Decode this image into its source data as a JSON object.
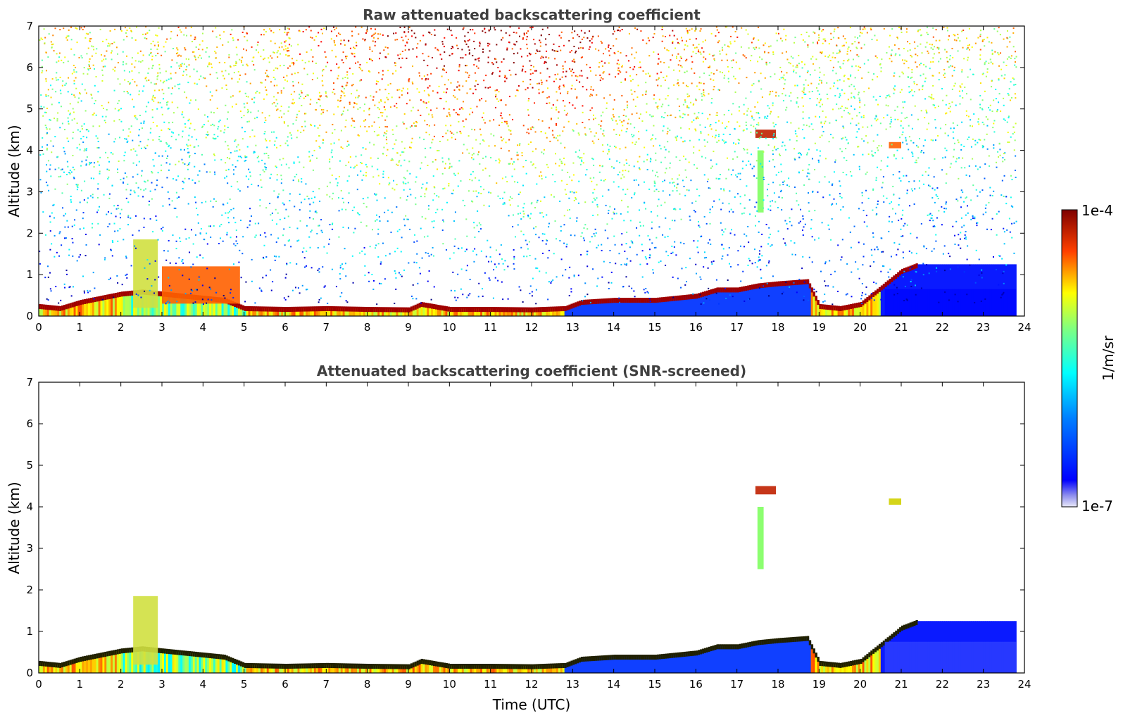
{
  "chart_data": [
    {
      "type": "heatmap",
      "title": "Raw attenuated backscattering coefficient",
      "xlabel": "",
      "ylabel": "Altitude (km)",
      "xlim": [
        0,
        24
      ],
      "ylim": [
        0,
        7
      ],
      "xticks": [
        "0",
        "1",
        "2",
        "3",
        "4",
        "5",
        "6",
        "7",
        "8",
        "9",
        "10",
        "11",
        "12",
        "13",
        "14",
        "15",
        "16",
        "17",
        "18",
        "19",
        "20",
        "21",
        "22",
        "23",
        "24"
      ],
      "yticks": [
        "0",
        "1",
        "2",
        "3",
        "4",
        "5",
        "6",
        "7"
      ],
      "data_extent_x": [
        0,
        23.8
      ],
      "boundary_layer_top_km": {
        "x": [
          0,
          0.5,
          1,
          1.5,
          2,
          2.5,
          3,
          3.5,
          4,
          4.5,
          5,
          6,
          7,
          8,
          9,
          9.3,
          10,
          11,
          12,
          12.8,
          13.2,
          14,
          15,
          16,
          16.5,
          17,
          17.5,
          18,
          18.7,
          19,
          19.5,
          20,
          20.5,
          21,
          21.4
        ],
        "y": [
          0.25,
          0.2,
          0.35,
          0.45,
          0.55,
          0.6,
          0.55,
          0.5,
          0.45,
          0.4,
          0.2,
          0.18,
          0.2,
          0.18,
          0.17,
          0.3,
          0.18,
          0.18,
          0.17,
          0.2,
          0.35,
          0.4,
          0.4,
          0.5,
          0.65,
          0.65,
          0.75,
          0.8,
          0.85,
          0.25,
          0.2,
          0.3,
          0.7,
          1.1,
          1.25
        ]
      },
      "features": [
        {
          "label": "convective plume",
          "x": [
            2.3,
            2.9
          ],
          "y_km": [
            0.2,
            1.85
          ]
        },
        {
          "label": "cloud",
          "x": [
            3.0,
            4.9
          ],
          "y_km": [
            0.3,
            1.2
          ]
        },
        {
          "label": "elevated cloud",
          "x": [
            17.45,
            17.95
          ],
          "y_km": [
            4.3,
            4.5
          ]
        },
        {
          "label": "virga",
          "x": [
            17.5,
            17.65
          ],
          "y_km": [
            2.5,
            4.0
          ]
        },
        {
          "label": "cloud",
          "x": [
            20.7,
            21.0
          ],
          "y_km": [
            4.05,
            4.2
          ]
        },
        {
          "label": "aerosol layer",
          "x": [
            20.6,
            23.8
          ],
          "y_km": [
            0,
            0.65
          ]
        }
      ]
    },
    {
      "type": "heatmap",
      "title": "Attenuated backscattering coefficient (SNR-screened)",
      "xlabel": "Time (UTC)",
      "ylabel": "Altitude (km)",
      "xlim": [
        0,
        24
      ],
      "ylim": [
        0,
        7
      ],
      "xticks": [
        "0",
        "1",
        "2",
        "3",
        "4",
        "5",
        "6",
        "7",
        "8",
        "9",
        "10",
        "11",
        "12",
        "13",
        "14",
        "15",
        "16",
        "17",
        "18",
        "19",
        "20",
        "21",
        "22",
        "23",
        "24"
      ],
      "yticks": [
        "0",
        "1",
        "2",
        "3",
        "4",
        "5",
        "6",
        "7"
      ],
      "data_extent_x": [
        0,
        23.8
      ],
      "features": [
        {
          "label": "boundary layer",
          "x": [
            0,
            21.4
          ],
          "y_km": [
            0,
            1.25
          ]
        },
        {
          "label": "convective plume",
          "x": [
            2.3,
            2.9
          ],
          "y_km": [
            0.2,
            1.85
          ]
        },
        {
          "label": "elevated cloud",
          "x": [
            17.45,
            17.95
          ],
          "y_km": [
            4.3,
            4.5
          ]
        },
        {
          "label": "virga",
          "x": [
            17.5,
            17.65
          ],
          "y_km": [
            2.5,
            4.0
          ]
        },
        {
          "label": "cloud",
          "x": [
            20.7,
            21.0
          ],
          "y_km": [
            4.05,
            4.2
          ]
        },
        {
          "label": "aerosol layer",
          "x": [
            20.6,
            23.8
          ],
          "y_km": [
            0,
            0.75
          ]
        }
      ]
    }
  ],
  "colorbar": {
    "max_label": "1e-4",
    "min_label": "1e-7",
    "unit_label": "1/m/sr",
    "scale": "log",
    "range": [
      1e-07,
      0.0001
    ],
    "colormap": "jet"
  },
  "colors": {
    "jet_low": "#00007f",
    "jet_blue": "#0000ff",
    "jet_cyan": "#00ffff",
    "jet_yellow": "#ffff00",
    "jet_red": "#ff0000",
    "jet_high": "#7f0000",
    "title_color": "#404040"
  }
}
